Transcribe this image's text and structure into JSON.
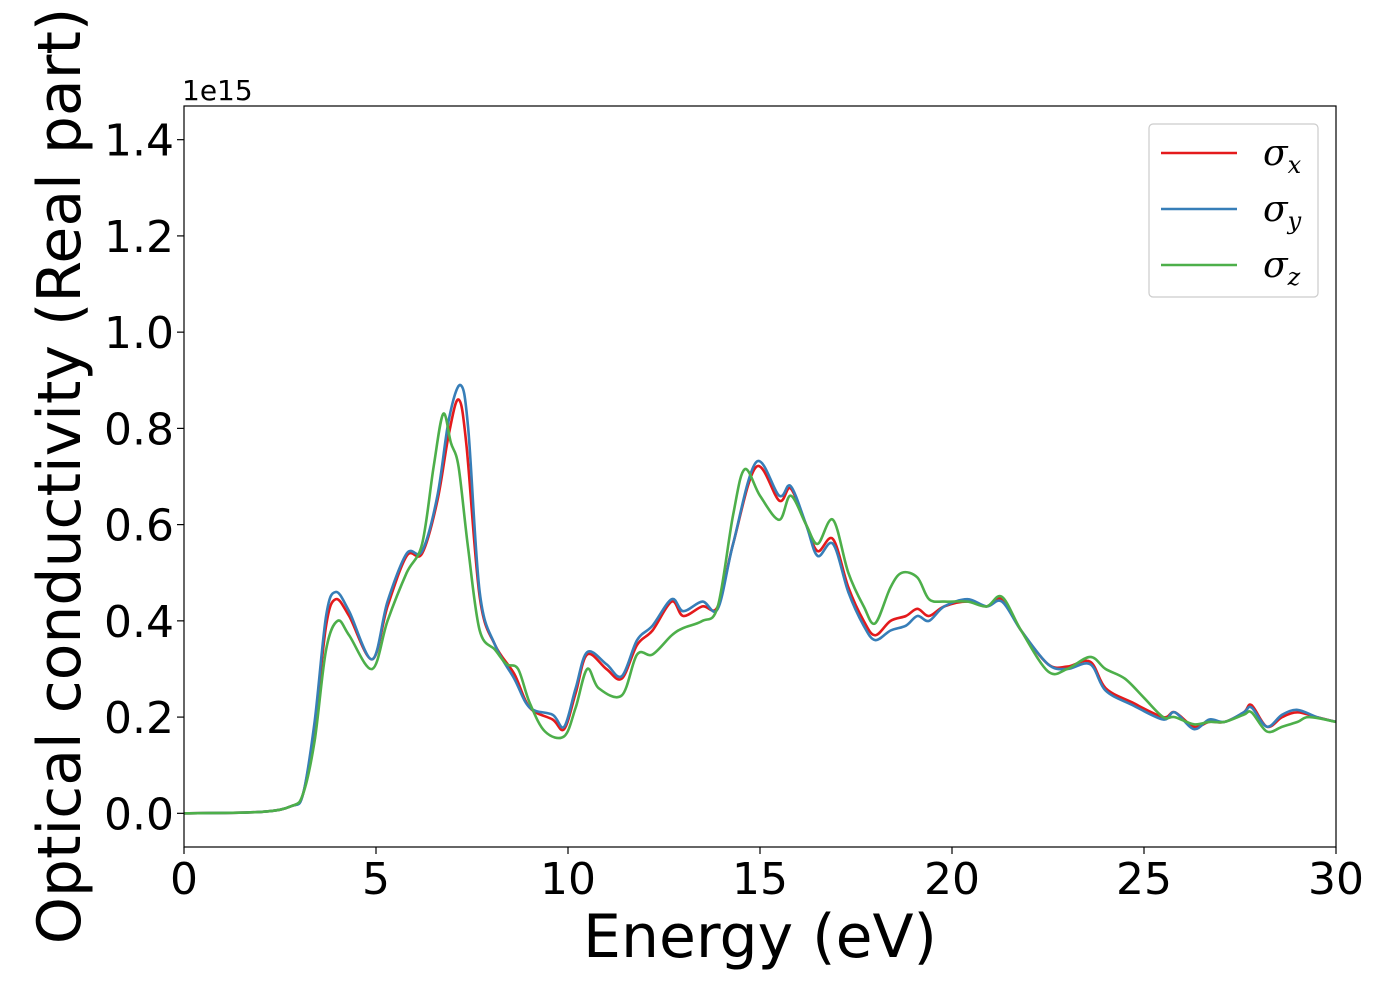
{
  "chart_data": {
    "type": "line",
    "title": "",
    "xlabel": "Energy (eV)",
    "ylabel": "Optical conductivity (Real part)",
    "y_offset_text": "1e15",
    "xlim": [
      0,
      30
    ],
    "ylim": [
      -0.07,
      1.47
    ],
    "x_ticks": [
      0,
      5,
      10,
      15,
      20,
      25,
      30
    ],
    "x_tick_labels": [
      "0",
      "5",
      "10",
      "15",
      "20",
      "25",
      "30"
    ],
    "y_ticks": [
      0.0,
      0.2,
      0.4,
      0.6,
      0.8,
      1.0,
      1.2,
      1.4
    ],
    "y_tick_labels": [
      "0.0",
      "0.2",
      "0.4",
      "0.6",
      "0.8",
      "1.0",
      "1.2",
      "1.4"
    ],
    "grid": false,
    "legend_position": "top-right",
    "series": [
      {
        "name": "σx",
        "symbol": "σ",
        "subscript": "x",
        "color": "#e41a1c",
        "points": [
          [
            0,
            0
          ],
          [
            2,
            0.003
          ],
          [
            2.8,
            0.015
          ],
          [
            3.1,
            0.04
          ],
          [
            3.4,
            0.18
          ],
          [
            3.7,
            0.39
          ],
          [
            3.95,
            0.445
          ],
          [
            4.3,
            0.41
          ],
          [
            4.9,
            0.32
          ],
          [
            5.3,
            0.43
          ],
          [
            5.8,
            0.535
          ],
          [
            6.2,
            0.54
          ],
          [
            6.6,
            0.65
          ],
          [
            6.9,
            0.79
          ],
          [
            7.15,
            0.86
          ],
          [
            7.35,
            0.77
          ],
          [
            7.7,
            0.45
          ],
          [
            8.1,
            0.35
          ],
          [
            8.6,
            0.29
          ],
          [
            9.0,
            0.22
          ],
          [
            9.6,
            0.195
          ],
          [
            9.9,
            0.175
          ],
          [
            10.2,
            0.25
          ],
          [
            10.5,
            0.33
          ],
          [
            11.0,
            0.3
          ],
          [
            11.4,
            0.28
          ],
          [
            11.8,
            0.35
          ],
          [
            12.2,
            0.38
          ],
          [
            12.7,
            0.44
          ],
          [
            13.0,
            0.41
          ],
          [
            13.5,
            0.43
          ],
          [
            13.9,
            0.43
          ],
          [
            14.3,
            0.56
          ],
          [
            14.9,
            0.72
          ],
          [
            15.5,
            0.65
          ],
          [
            15.8,
            0.675
          ],
          [
            16.2,
            0.6
          ],
          [
            16.5,
            0.545
          ],
          [
            16.9,
            0.57
          ],
          [
            17.3,
            0.47
          ],
          [
            17.7,
            0.4
          ],
          [
            18.0,
            0.37
          ],
          [
            18.4,
            0.4
          ],
          [
            18.8,
            0.41
          ],
          [
            19.1,
            0.425
          ],
          [
            19.4,
            0.41
          ],
          [
            19.8,
            0.43
          ],
          [
            20.4,
            0.44
          ],
          [
            20.9,
            0.43
          ],
          [
            21.3,
            0.445
          ],
          [
            21.8,
            0.38
          ],
          [
            22.5,
            0.31
          ],
          [
            23.0,
            0.305
          ],
          [
            23.6,
            0.315
          ],
          [
            24.0,
            0.26
          ],
          [
            24.7,
            0.23
          ],
          [
            25.5,
            0.2
          ],
          [
            25.8,
            0.21
          ],
          [
            26.3,
            0.18
          ],
          [
            26.7,
            0.19
          ],
          [
            27.1,
            0.19
          ],
          [
            27.6,
            0.21
          ],
          [
            27.8,
            0.225
          ],
          [
            28.2,
            0.18
          ],
          [
            28.6,
            0.2
          ],
          [
            29.0,
            0.21
          ],
          [
            29.5,
            0.2
          ],
          [
            30,
            0.19
          ]
        ]
      },
      {
        "name": "σy",
        "symbol": "σ",
        "subscript": "y",
        "color": "#377eb8",
        "points": [
          [
            0,
            0
          ],
          [
            2,
            0.003
          ],
          [
            2.8,
            0.015
          ],
          [
            3.1,
            0.04
          ],
          [
            3.4,
            0.19
          ],
          [
            3.7,
            0.41
          ],
          [
            3.95,
            0.46
          ],
          [
            4.3,
            0.42
          ],
          [
            4.9,
            0.32
          ],
          [
            5.3,
            0.44
          ],
          [
            5.8,
            0.54
          ],
          [
            6.2,
            0.545
          ],
          [
            6.6,
            0.66
          ],
          [
            6.9,
            0.82
          ],
          [
            7.2,
            0.89
          ],
          [
            7.4,
            0.8
          ],
          [
            7.7,
            0.46
          ],
          [
            8.1,
            0.35
          ],
          [
            8.6,
            0.28
          ],
          [
            9.0,
            0.22
          ],
          [
            9.6,
            0.205
          ],
          [
            9.9,
            0.18
          ],
          [
            10.2,
            0.26
          ],
          [
            10.5,
            0.335
          ],
          [
            11.0,
            0.31
          ],
          [
            11.4,
            0.285
          ],
          [
            11.8,
            0.36
          ],
          [
            12.2,
            0.39
          ],
          [
            12.7,
            0.445
          ],
          [
            13.0,
            0.42
          ],
          [
            13.5,
            0.44
          ],
          [
            13.9,
            0.425
          ],
          [
            14.3,
            0.56
          ],
          [
            14.9,
            0.73
          ],
          [
            15.5,
            0.66
          ],
          [
            15.8,
            0.68
          ],
          [
            16.2,
            0.6
          ],
          [
            16.5,
            0.535
          ],
          [
            16.9,
            0.56
          ],
          [
            17.3,
            0.46
          ],
          [
            17.7,
            0.39
          ],
          [
            18.0,
            0.36
          ],
          [
            18.4,
            0.38
          ],
          [
            18.8,
            0.39
          ],
          [
            19.1,
            0.41
          ],
          [
            19.4,
            0.4
          ],
          [
            19.8,
            0.43
          ],
          [
            20.4,
            0.445
          ],
          [
            20.9,
            0.43
          ],
          [
            21.3,
            0.44
          ],
          [
            21.8,
            0.38
          ],
          [
            22.5,
            0.31
          ],
          [
            23.0,
            0.3
          ],
          [
            23.6,
            0.31
          ],
          [
            24.0,
            0.255
          ],
          [
            24.7,
            0.225
          ],
          [
            25.5,
            0.195
          ],
          [
            25.8,
            0.21
          ],
          [
            26.3,
            0.175
          ],
          [
            26.7,
            0.195
          ],
          [
            27.1,
            0.19
          ],
          [
            27.6,
            0.21
          ],
          [
            27.8,
            0.22
          ],
          [
            28.2,
            0.18
          ],
          [
            28.6,
            0.205
          ],
          [
            29.0,
            0.215
          ],
          [
            29.5,
            0.2
          ],
          [
            30,
            0.19
          ]
        ]
      },
      {
        "name": "σz",
        "symbol": "σ",
        "subscript": "z",
        "color": "#4daf4a",
        "points": [
          [
            0,
            0
          ],
          [
            2,
            0.003
          ],
          [
            2.8,
            0.015
          ],
          [
            3.1,
            0.04
          ],
          [
            3.4,
            0.15
          ],
          [
            3.7,
            0.34
          ],
          [
            4.0,
            0.4
          ],
          [
            4.3,
            0.37
          ],
          [
            4.9,
            0.3
          ],
          [
            5.3,
            0.4
          ],
          [
            5.8,
            0.5
          ],
          [
            6.2,
            0.56
          ],
          [
            6.5,
            0.72
          ],
          [
            6.75,
            0.83
          ],
          [
            6.95,
            0.77
          ],
          [
            7.15,
            0.72
          ],
          [
            7.4,
            0.55
          ],
          [
            7.7,
            0.38
          ],
          [
            8.1,
            0.34
          ],
          [
            8.4,
            0.31
          ],
          [
            8.7,
            0.3
          ],
          [
            9.0,
            0.23
          ],
          [
            9.4,
            0.17
          ],
          [
            9.9,
            0.16
          ],
          [
            10.2,
            0.22
          ],
          [
            10.5,
            0.3
          ],
          [
            10.8,
            0.26
          ],
          [
            11.4,
            0.245
          ],
          [
            11.8,
            0.33
          ],
          [
            12.2,
            0.33
          ],
          [
            12.7,
            0.37
          ],
          [
            13.0,
            0.385
          ],
          [
            13.5,
            0.4
          ],
          [
            13.9,
            0.43
          ],
          [
            14.3,
            0.62
          ],
          [
            14.6,
            0.715
          ],
          [
            15.0,
            0.66
          ],
          [
            15.5,
            0.61
          ],
          [
            15.8,
            0.66
          ],
          [
            16.2,
            0.6
          ],
          [
            16.5,
            0.56
          ],
          [
            16.9,
            0.61
          ],
          [
            17.3,
            0.5
          ],
          [
            17.7,
            0.43
          ],
          [
            18.0,
            0.395
          ],
          [
            18.4,
            0.47
          ],
          [
            18.7,
            0.5
          ],
          [
            19.1,
            0.49
          ],
          [
            19.4,
            0.445
          ],
          [
            19.8,
            0.44
          ],
          [
            20.4,
            0.44
          ],
          [
            20.9,
            0.43
          ],
          [
            21.3,
            0.45
          ],
          [
            21.8,
            0.38
          ],
          [
            22.5,
            0.295
          ],
          [
            23.0,
            0.3
          ],
          [
            23.6,
            0.325
          ],
          [
            24.0,
            0.3
          ],
          [
            24.5,
            0.28
          ],
          [
            25.0,
            0.24
          ],
          [
            25.5,
            0.2
          ],
          [
            25.8,
            0.2
          ],
          [
            26.3,
            0.185
          ],
          [
            26.7,
            0.19
          ],
          [
            27.1,
            0.19
          ],
          [
            27.6,
            0.205
          ],
          [
            27.8,
            0.21
          ],
          [
            28.2,
            0.17
          ],
          [
            28.6,
            0.18
          ],
          [
            29.0,
            0.19
          ],
          [
            29.3,
            0.2
          ],
          [
            30,
            0.19
          ]
        ]
      }
    ]
  }
}
